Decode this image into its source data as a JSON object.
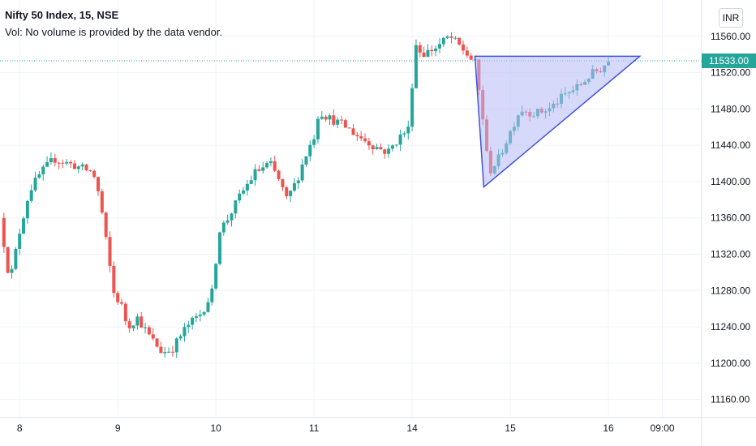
{
  "legend": {
    "title": "Nifty 50 Index, 15, NSE",
    "volume_note": "Vol: No volume is provided by the data vendor."
  },
  "currency_button": "INR",
  "last_price_label": "11533.00",
  "colors": {
    "up": "#26a69a",
    "down": "#ef5350",
    "grid": "#f0f3fa",
    "axis_text": "#131722",
    "pattern_fill": "#b7b9f5",
    "pattern_stroke": "#3f51e0",
    "price_line": "#26a69a"
  },
  "chart_data": {
    "type": "candlestick",
    "title": "Nifty 50 Index, 15, NSE",
    "ylim": [
      11140,
      11600
    ],
    "y_ticks": [
      11560,
      11520,
      11480,
      11440,
      11400,
      11360,
      11320,
      11280,
      11240,
      11200,
      11160
    ],
    "y_tick_labels": [
      "11560.00",
      "11520.00",
      "11480.00",
      "11440.00",
      "11400.00",
      "11360.00",
      "11320.00",
      "11280.00",
      "11240.00",
      "11200.00",
      "11160.00"
    ],
    "x_tick_labels": [
      "8",
      "9",
      "10",
      "11",
      "14",
      "15",
      "16",
      "09:00"
    ],
    "x_tick_positions": [
      0.0,
      1.0,
      2.0,
      3.0,
      4.0,
      5.0,
      6.0,
      6.55
    ],
    "xlim": [
      -0.2,
      6.95
    ],
    "last_price": 11533.0,
    "grid": true,
    "keyframes": [
      [
        -0.2,
        11360
      ],
      [
        -0.1,
        11290
      ],
      [
        0.0,
        11345
      ],
      [
        0.1,
        11390
      ],
      [
        0.22,
        11410
      ],
      [
        0.35,
        11425
      ],
      [
        0.55,
        11418
      ],
      [
        0.75,
        11410
      ],
      [
        0.82,
        11380
      ],
      [
        0.9,
        11320
      ],
      [
        0.97,
        11270
      ],
      [
        1.02,
        11270
      ],
      [
        1.1,
        11240
      ],
      [
        1.2,
        11250
      ],
      [
        1.32,
        11230
      ],
      [
        1.45,
        11212
      ],
      [
        1.55,
        11215
      ],
      [
        1.7,
        11240
      ],
      [
        1.85,
        11255
      ],
      [
        1.98,
        11282
      ],
      [
        2.02,
        11345
      ],
      [
        2.1,
        11355
      ],
      [
        2.25,
        11385
      ],
      [
        2.4,
        11410
      ],
      [
        2.55,
        11420
      ],
      [
        2.65,
        11400
      ],
      [
        2.72,
        11380
      ],
      [
        2.82,
        11400
      ],
      [
        2.9,
        11425
      ],
      [
        3.0,
        11450
      ],
      [
        3.05,
        11478
      ],
      [
        3.15,
        11470
      ],
      [
        3.3,
        11462
      ],
      [
        3.45,
        11450
      ],
      [
        3.6,
        11440
      ],
      [
        3.75,
        11432
      ],
      [
        3.88,
        11450
      ],
      [
        3.98,
        11460
      ],
      [
        4.02,
        11555
      ],
      [
        4.1,
        11540
      ],
      [
        4.25,
        11548
      ],
      [
        4.38,
        11560
      ],
      [
        4.52,
        11545
      ],
      [
        4.64,
        11530
      ],
      [
        4.72,
        11470
      ],
      [
        4.78,
        11410
      ],
      [
        4.88,
        11425
      ],
      [
        4.98,
        11450
      ],
      [
        5.1,
        11480
      ],
      [
        5.25,
        11475
      ],
      [
        5.4,
        11480
      ],
      [
        5.55,
        11495
      ],
      [
        5.7,
        11505
      ],
      [
        5.82,
        11518
      ],
      [
        5.92,
        11524
      ],
      [
        6.0,
        11533
      ]
    ],
    "pattern": {
      "type": "triangle",
      "points": [
        [
          4.64,
          11538
        ],
        [
          4.73,
          11394
        ],
        [
          6.32,
          11538
        ]
      ]
    }
  }
}
